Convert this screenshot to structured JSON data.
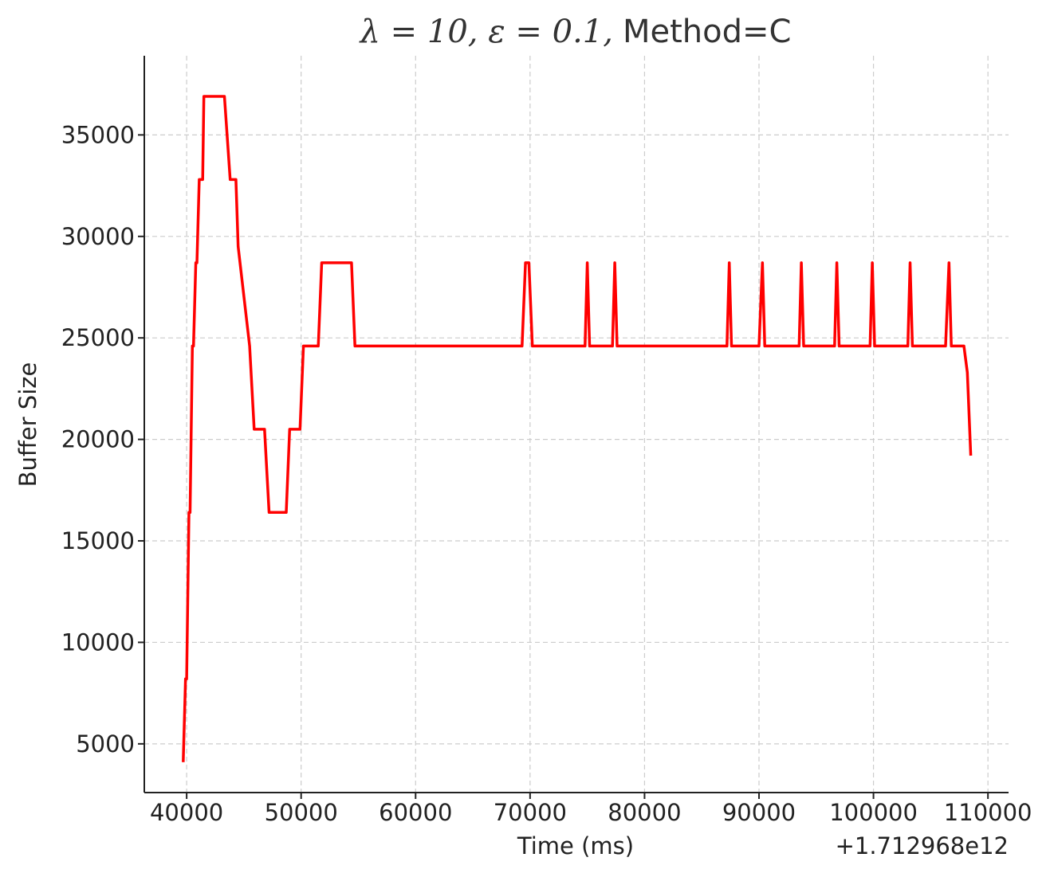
{
  "chart_data": {
    "type": "line",
    "title": "λ = 10, ε = 0.1, Method=C",
    "title_parts": {
      "math": "λ = 10, ε = 0.1,",
      "text": "Method=C"
    },
    "xlabel": "Time (ms)",
    "ylabel": "Buffer Size",
    "x_offset_label": "+1.712968e12",
    "xlim": [
      36300,
      111800
    ],
    "ylim": [
      2600,
      38900
    ],
    "xticks": [
      40000,
      50000,
      60000,
      70000,
      80000,
      90000,
      100000,
      110000
    ],
    "xtick_labels": [
      "40000",
      "50000",
      "60000",
      "70000",
      "80000",
      "90000",
      "100000",
      "110000"
    ],
    "yticks": [
      5000,
      10000,
      15000,
      20000,
      25000,
      30000,
      35000
    ],
    "ytick_labels": [
      "5000",
      "10000",
      "15000",
      "20000",
      "25000",
      "30000",
      "35000"
    ],
    "grid": true,
    "line_color": "#ff0000",
    "series": [
      {
        "x": [
          39700,
          39900,
          40000,
          40200,
          40300,
          40500,
          40600,
          40800,
          40900,
          41100,
          41400,
          41500,
          43300,
          43800,
          44300,
          44500,
          45500,
          45900,
          46800,
          47200,
          48700,
          49000,
          49900,
          50200,
          51500,
          51800,
          54400,
          54700,
          69300,
          69600,
          69900,
          70200,
          74800,
          75000,
          75200,
          77200,
          77400,
          77600,
          87200,
          87400,
          87600,
          90000,
          90300,
          90500,
          93500,
          93700,
          93900,
          96600,
          96800,
          97000,
          99700,
          99900,
          100100,
          103000,
          103200,
          103400,
          106300,
          106600,
          106800,
          107900,
          108200,
          108500
        ],
        "y": [
          4100,
          8200,
          8200,
          16400,
          16400,
          24600,
          24600,
          28700,
          28700,
          32800,
          32800,
          36900,
          36900,
          32800,
          32800,
          29500,
          24600,
          20500,
          20500,
          16400,
          16400,
          20500,
          20500,
          24600,
          24600,
          28700,
          28700,
          24600,
          24600,
          28700,
          28700,
          24600,
          24600,
          28700,
          24600,
          24600,
          28700,
          24600,
          24600,
          28700,
          24600,
          24600,
          28700,
          24600,
          24600,
          28700,
          24600,
          24600,
          28700,
          24600,
          24600,
          28700,
          24600,
          24600,
          28700,
          24600,
          24600,
          28700,
          24600,
          24600,
          23300,
          19200
        ]
      }
    ]
  }
}
